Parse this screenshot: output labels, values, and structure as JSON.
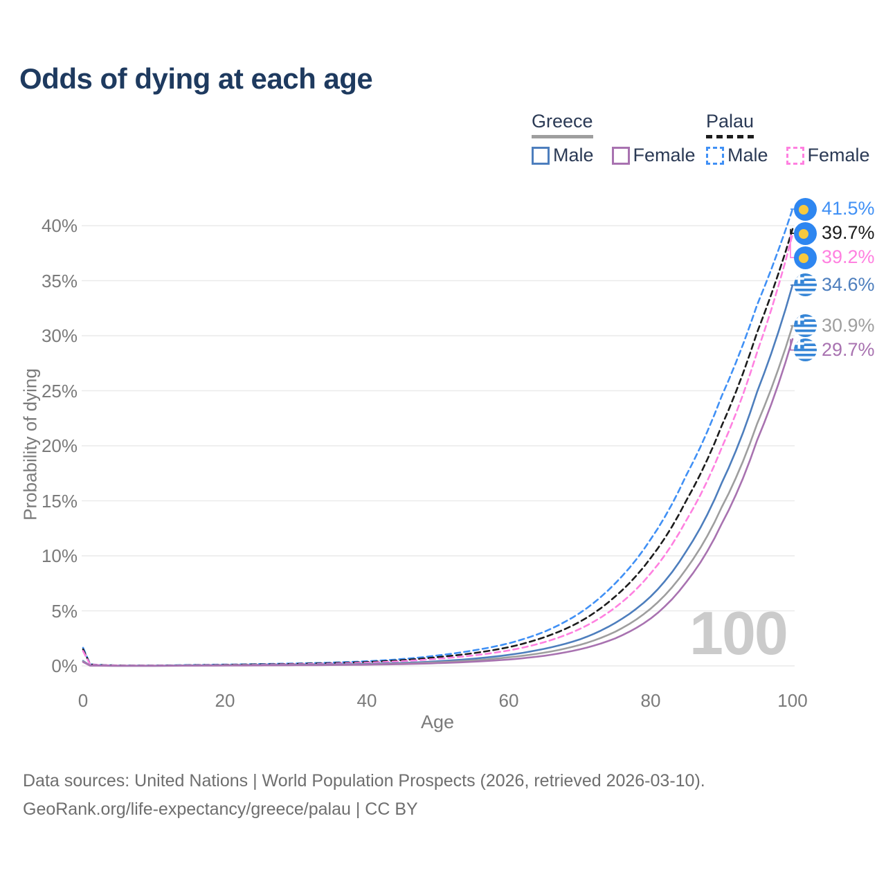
{
  "title": "Odds of dying at each age",
  "colors": {
    "title": "#1e3a5f",
    "axis": "#7a7a7a",
    "grid": "#eaeaea",
    "legend_text": "#2b3a55",
    "footer": "#6e6e6e",
    "watermark": "#cbcbcb",
    "greece_line": "#9e9e9e",
    "palau_line": "#1c1c1c",
    "greece_male": "#4d7ebd",
    "greece_female": "#a872b0",
    "palau_male": "#4090f5",
    "palau_female": "#ff80e0"
  },
  "legend": {
    "groups": [
      {
        "country": "Greece",
        "line_style": "solid",
        "line_color": "#9e9e9e",
        "items": [
          {
            "label": "Male",
            "color": "#4d7ebd",
            "style": "solid"
          },
          {
            "label": "Female",
            "color": "#a872b0",
            "style": "solid"
          }
        ]
      },
      {
        "country": "Palau",
        "line_style": "dashed",
        "line_color": "#1c1c1c",
        "items": [
          {
            "label": "Male",
            "color": "#4090f5",
            "style": "dashed"
          },
          {
            "label": "Female",
            "color": "#ff80e0",
            "style": "dashed"
          }
        ]
      }
    ]
  },
  "chart_data": {
    "type": "line",
    "title": "Odds of dying at each age",
    "xlabel": "Age",
    "ylabel": "Probability of dying",
    "xlim": [
      0,
      100
    ],
    "ylim_pct": [
      0,
      43
    ],
    "xticks": [
      0,
      20,
      40,
      60,
      80,
      100
    ],
    "yticks_pct": [
      0,
      5,
      10,
      15,
      20,
      25,
      30,
      35,
      40
    ],
    "ytick_suffix": "%",
    "grid": "horizontal",
    "legend_position": "top-right",
    "ages": [
      0,
      1,
      5,
      10,
      15,
      20,
      25,
      30,
      35,
      40,
      45,
      50,
      55,
      60,
      65,
      70,
      75,
      80,
      85,
      90,
      95,
      100
    ],
    "series": [
      {
        "name": "Palau Male",
        "country": "Palau",
        "sex": "male",
        "color": "#4090f5",
        "dashed": true,
        "flag": "palau",
        "end_label": "41.5%",
        "values_pct": [
          1.65,
          0.14,
          0.04,
          0.035,
          0.08,
          0.12,
          0.17,
          0.22,
          0.3,
          0.42,
          0.62,
          0.95,
          1.4,
          2.05,
          3.1,
          4.8,
          7.5,
          11.5,
          17.3,
          24.5,
          32.8,
          41.5
        ]
      },
      {
        "name": "Palau Both sexes",
        "country": "Palau",
        "sex": "both",
        "color": "#1c1c1c",
        "dashed": true,
        "flag": "palau",
        "end_label": "39.7%",
        "values_pct": [
          1.5,
          0.12,
          0.035,
          0.03,
          0.06,
          0.1,
          0.14,
          0.18,
          0.25,
          0.35,
          0.52,
          0.8,
          1.15,
          1.7,
          2.6,
          4.0,
          6.3,
          9.8,
          15.0,
          21.8,
          30.3,
          39.7
        ]
      },
      {
        "name": "Palau Female",
        "country": "Palau",
        "sex": "female",
        "color": "#ff80e0",
        "dashed": true,
        "flag": "palau",
        "end_label": "39.2%",
        "values_pct": [
          1.35,
          0.11,
          0.03,
          0.025,
          0.05,
          0.08,
          0.11,
          0.15,
          0.2,
          0.29,
          0.43,
          0.65,
          0.95,
          1.4,
          2.15,
          3.35,
          5.3,
          8.4,
          13.2,
          19.8,
          28.5,
          39.2
        ]
      },
      {
        "name": "Greece Male",
        "country": "Greece",
        "sex": "male",
        "color": "#4d7ebd",
        "dashed": false,
        "flag": "greece",
        "end_label": "34.6%",
        "values_pct": [
          0.45,
          0.03,
          0.012,
          0.012,
          0.04,
          0.06,
          0.08,
          0.1,
          0.13,
          0.18,
          0.27,
          0.42,
          0.65,
          1.0,
          1.55,
          2.4,
          3.9,
          6.3,
          10.4,
          16.6,
          24.9,
          34.6
        ]
      },
      {
        "name": "Greece Both sexes",
        "country": "Greece",
        "sex": "both",
        "color": "#9e9e9e",
        "dashed": false,
        "flag": "greece",
        "end_label": "30.9%",
        "values_pct": [
          0.4,
          0.025,
          0.01,
          0.01,
          0.03,
          0.045,
          0.06,
          0.08,
          0.1,
          0.14,
          0.21,
          0.33,
          0.5,
          0.78,
          1.2,
          1.9,
          3.1,
          5.2,
          8.8,
          14.4,
          22.0,
          30.9
        ]
      },
      {
        "name": "Greece Female",
        "country": "Greece",
        "sex": "female",
        "color": "#a872b0",
        "dashed": false,
        "flag": "greece",
        "end_label": "29.7%",
        "values_pct": [
          0.35,
          0.02,
          0.008,
          0.009,
          0.02,
          0.03,
          0.045,
          0.06,
          0.08,
          0.11,
          0.16,
          0.25,
          0.38,
          0.58,
          0.92,
          1.5,
          2.5,
          4.3,
          7.6,
          12.9,
          20.5,
          29.7
        ]
      }
    ]
  },
  "watermark": "100",
  "footer": {
    "line1": "Data sources: United Nations | World Population Prospects (2026, retrieved 2026-03-10).",
    "line2": "GeoRank.org/life-expectancy/greece/palau | CC BY"
  }
}
